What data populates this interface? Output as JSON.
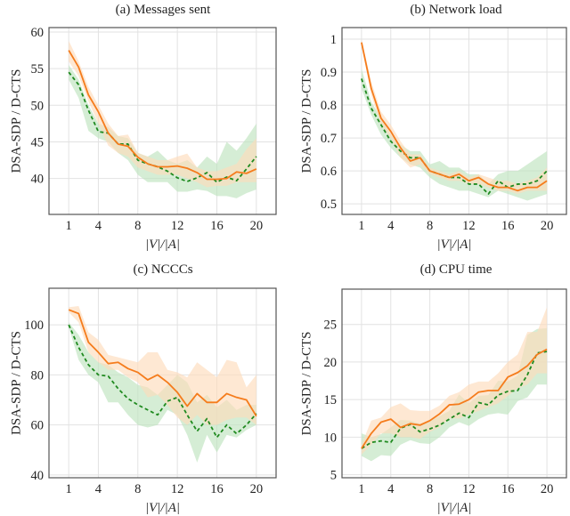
{
  "chart_data": [
    {
      "type": "line",
      "title": "(a) Messages sent",
      "xlabel": "|V|/|A|",
      "ylabel": "DSA-SDP / D-CTS",
      "xlim": [
        -1,
        22
      ],
      "ylim": [
        35.1,
        60.6
      ],
      "xticks": [
        1,
        4,
        8,
        12,
        16,
        20
      ],
      "yticks": [
        40,
        45,
        50,
        55,
        60
      ],
      "grid": true,
      "x": [
        1,
        2,
        3,
        4,
        5,
        6,
        7,
        8,
        9,
        10,
        11,
        12,
        13,
        14,
        15,
        16,
        17,
        18,
        19,
        20
      ],
      "series": [
        {
          "style": "solid",
          "color": "#f57c1c",
          "band_color": "#fddcbc",
          "values": [
            57.5,
            55.2,
            51.4,
            49.1,
            46.2,
            44.7,
            44.4,
            42.9,
            42.0,
            41.6,
            41.6,
            41.7,
            41.4,
            40.8,
            39.9,
            39.9,
            40.0,
            40.9,
            40.7,
            41.3
          ],
          "upper": [
            58.8,
            56,
            52.5,
            50,
            47.5,
            45.8,
            46,
            43.5,
            43,
            42.5,
            42.5,
            43,
            43.4,
            41.5,
            41,
            41,
            41.5,
            42,
            44,
            45.5
          ],
          "lower": [
            56,
            54,
            50.5,
            47.5,
            44.5,
            43.5,
            43,
            41.5,
            41,
            40.5,
            40.5,
            40.5,
            40,
            39.5,
            38.8,
            39,
            39,
            39.5,
            39.5,
            39.5
          ]
        },
        {
          "style": "dashed",
          "color": "#1f8a1f",
          "band_color": "#bfe3bf",
          "values": [
            54.5,
            52.8,
            49.3,
            46.4,
            46.2,
            44.7,
            44.7,
            42.5,
            42.0,
            41.6,
            41.0,
            40.1,
            39.6,
            40.1,
            40.8,
            39.5,
            40.2,
            39.7,
            41.3,
            43.0
          ],
          "upper": [
            55.5,
            53.5,
            50,
            47.5,
            47,
            45.8,
            45.5,
            43.5,
            43,
            43.8,
            42.5,
            42,
            42.5,
            41.5,
            43,
            42,
            45,
            43.8,
            45.5,
            47.5
          ],
          "lower": [
            53.5,
            51,
            46.5,
            45.5,
            45,
            43.5,
            42.5,
            40.5,
            39.5,
            39.5,
            39.5,
            38.2,
            38.2,
            38.5,
            38.3,
            37.6,
            37.6,
            37.3,
            38,
            38.5
          ]
        }
      ]
    },
    {
      "type": "line",
      "title": "(b) Network load",
      "xlabel": "|V|/|A|",
      "ylabel": "DSA-SDP / D-CTS",
      "xlim": [
        -1,
        22
      ],
      "ylim": [
        0.468,
        1.035
      ],
      "xticks": [
        1,
        4,
        8,
        12,
        16,
        20
      ],
      "yticks": [
        0.5,
        0.6,
        0.7,
        0.8,
        0.9,
        1
      ],
      "grid": true,
      "x": [
        1,
        2,
        3,
        4,
        5,
        6,
        7,
        8,
        9,
        10,
        11,
        12,
        13,
        14,
        15,
        16,
        17,
        18,
        19,
        20
      ],
      "series": [
        {
          "style": "solid",
          "color": "#f57c1c",
          "band_color": "#fddcbc",
          "values": [
            0.99,
            0.85,
            0.76,
            0.72,
            0.67,
            0.63,
            0.64,
            0.6,
            0.59,
            0.58,
            0.59,
            0.57,
            0.58,
            0.56,
            0.55,
            0.55,
            0.54,
            0.55,
            0.55,
            0.57
          ],
          "upper": [
            1.0,
            0.87,
            0.78,
            0.74,
            0.69,
            0.65,
            0.65,
            0.61,
            0.6,
            0.59,
            0.6,
            0.58,
            0.59,
            0.58,
            0.57,
            0.57,
            0.56,
            0.57,
            0.58,
            0.61
          ],
          "lower": [
            0.98,
            0.83,
            0.74,
            0.7,
            0.64,
            0.61,
            0.62,
            0.59,
            0.58,
            0.57,
            0.57,
            0.56,
            0.56,
            0.55,
            0.54,
            0.54,
            0.53,
            0.54,
            0.54,
            0.54
          ]
        },
        {
          "style": "dashed",
          "color": "#1f8a1f",
          "band_color": "#bfe3bf",
          "values": [
            0.88,
            0.79,
            0.74,
            0.69,
            0.66,
            0.64,
            0.64,
            0.6,
            0.59,
            0.58,
            0.58,
            0.56,
            0.56,
            0.53,
            0.57,
            0.55,
            0.56,
            0.56,
            0.57,
            0.6
          ],
          "upper": [
            0.91,
            0.81,
            0.76,
            0.71,
            0.68,
            0.66,
            0.66,
            0.62,
            0.63,
            0.61,
            0.61,
            0.59,
            0.59,
            0.56,
            0.59,
            0.6,
            0.6,
            0.62,
            0.64,
            0.66
          ],
          "lower": [
            0.85,
            0.77,
            0.71,
            0.67,
            0.64,
            0.62,
            0.61,
            0.58,
            0.56,
            0.55,
            0.54,
            0.54,
            0.53,
            0.52,
            0.54,
            0.53,
            0.52,
            0.51,
            0.52,
            0.53
          ]
        }
      ]
    },
    {
      "type": "line",
      "title": "(c) NCCCs",
      "xlabel": "|V|/|A|",
      "ylabel": "DSA-SDP / D-CTS",
      "xlim": [
        -1,
        22
      ],
      "ylim": [
        38.9,
        114.6
      ],
      "xticks": [
        1,
        4,
        8,
        12,
        16,
        20
      ],
      "yticks": [
        40,
        60,
        80,
        100
      ],
      "grid": true,
      "x": [
        1,
        2,
        3,
        4,
        5,
        6,
        7,
        8,
        9,
        10,
        11,
        12,
        13,
        14,
        15,
        16,
        17,
        18,
        19,
        20
      ],
      "series": [
        {
          "style": "solid",
          "color": "#f57c1c",
          "band_color": "#fddcbc",
          "values": [
            106,
            104.5,
            93,
            89,
            84.5,
            85,
            82.5,
            81,
            78,
            80,
            77,
            73,
            67.5,
            72.5,
            69,
            69,
            72.5,
            71,
            70,
            63.5
          ],
          "upper": [
            107,
            107.5,
            97,
            94,
            88,
            87,
            86,
            85,
            89,
            89,
            82,
            81,
            79,
            85,
            82,
            79,
            86,
            85,
            75,
            80
          ],
          "lower": [
            105,
            101,
            89,
            85,
            82,
            82,
            79,
            77,
            71,
            72,
            68,
            63,
            60,
            64,
            60,
            60,
            62,
            63,
            63,
            60
          ]
        },
        {
          "style": "dashed",
          "color": "#1f8a1f",
          "band_color": "#bfe3bf",
          "values": [
            100,
            91,
            84,
            80,
            79.5,
            74.5,
            70.5,
            68,
            66,
            64,
            69.5,
            71,
            64,
            57.5,
            62.5,
            55,
            60,
            56.5,
            60,
            64.5
          ],
          "upper": [
            101,
            96,
            89,
            85,
            84,
            81,
            79,
            76,
            75,
            72,
            76,
            80,
            77,
            69,
            72,
            67,
            70,
            66,
            68,
            68
          ],
          "lower": [
            99,
            86,
            80,
            77,
            69,
            69,
            64,
            60,
            59,
            60,
            66,
            64,
            56,
            45,
            56,
            49,
            56,
            55,
            58,
            60
          ]
        }
      ]
    },
    {
      "type": "line",
      "title": "(d) CPU time",
      "xlabel": "|V|/|A|",
      "ylabel": "DSA-SDP / D-CTS",
      "xlim": [
        -1,
        22
      ],
      "ylim": [
        4.6,
        29.7
      ],
      "xticks": [
        1,
        4,
        8,
        12,
        16,
        20
      ],
      "yticks": [
        5,
        10,
        15,
        20,
        25
      ],
      "grid": true,
      "x": [
        1,
        2,
        3,
        4,
        5,
        6,
        7,
        8,
        9,
        10,
        11,
        12,
        13,
        14,
        15,
        16,
        17,
        18,
        19,
        20
      ],
      "series": [
        {
          "style": "solid",
          "color": "#f57c1c",
          "band_color": "#fddcbc",
          "values": [
            8.5,
            10.5,
            12,
            12.4,
            11.3,
            11.8,
            11.6,
            12.2,
            13.1,
            14.3,
            14.4,
            15,
            16,
            16.2,
            16.2,
            18,
            18.6,
            19.5,
            21,
            21.7
          ],
          "upper": [
            9,
            12.2,
            12.6,
            14,
            14.5,
            13.6,
            13.5,
            13.5,
            14.2,
            15.5,
            16,
            17,
            17.4,
            17.4,
            18.5,
            20,
            21,
            24,
            24,
            27.3
          ],
          "lower": [
            7.7,
            9,
            10.5,
            10.5,
            10,
            10,
            9.8,
            10.7,
            11.3,
            12.5,
            12.5,
            13,
            13.5,
            14,
            14.5,
            15.5,
            16.5,
            17,
            18.5,
            18.5
          ]
        },
        {
          "style": "dashed",
          "color": "#1f8a1f",
          "band_color": "#bfe3bf",
          "values": [
            8.5,
            9.3,
            9.5,
            9.3,
            11.2,
            11.7,
            10.7,
            11.1,
            11.6,
            12.4,
            13.2,
            12.6,
            14.6,
            14.3,
            15.6,
            16.1,
            16.2,
            18.3,
            21.2,
            21.4
          ],
          "upper": [
            10.5,
            10,
            10.4,
            11.3,
            12.3,
            12.2,
            11.8,
            12.2,
            12.8,
            13.5,
            15.7,
            14.5,
            15.5,
            15.6,
            17.5,
            17.4,
            18.2,
            23.6,
            24.4,
            24.5
          ],
          "lower": [
            7.5,
            6.8,
            7.6,
            7.5,
            9,
            9.6,
            9.2,
            9.1,
            10,
            11.3,
            12,
            11.5,
            12.4,
            13,
            13.2,
            13,
            14.8,
            15.3,
            17,
            17
          ]
        }
      ]
    }
  ]
}
